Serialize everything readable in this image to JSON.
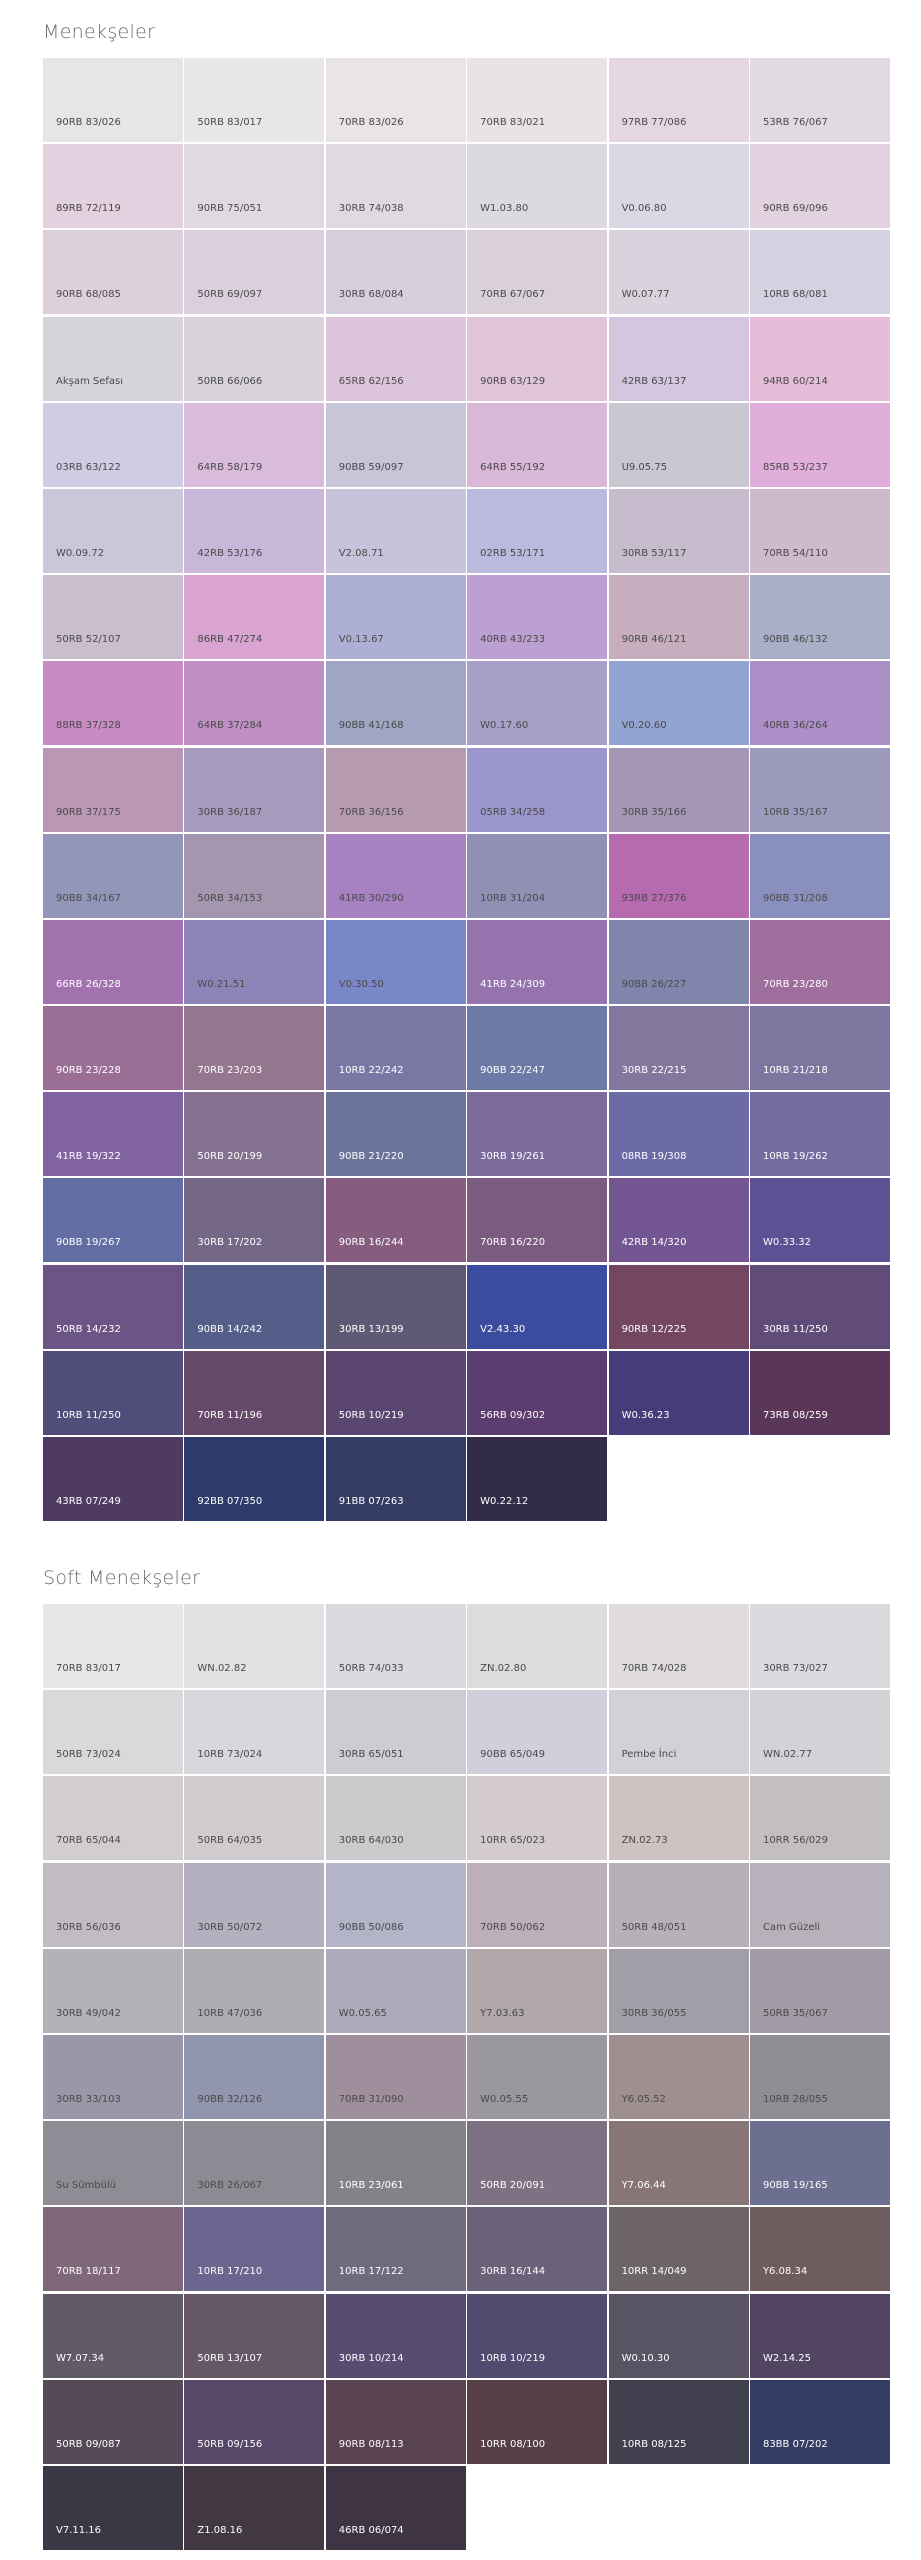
{
  "sections": [
    {
      "title": "Menekşeler",
      "swatches": [
        {
          "code": "90RB 83/026",
          "color": "#e8e5e8"
        },
        {
          "code": "50RB 83/017",
          "color": "#e9e6e8"
        },
        {
          "code": "70RB 83/026",
          "color": "#e8e4e7"
        },
        {
          "code": "70RB 83/021",
          "color": "#e7e3e6"
        },
        {
          "code": "97RB 77/086",
          "color": "#e5d7e2"
        },
        {
          "code": "53RB 76/067",
          "color": "#e2dae3"
        },
        {
          "code": "89RB 72/119",
          "color": "#e4d1df"
        },
        {
          "code": "90RB 75/051",
          "color": "#e0d9e0"
        },
        {
          "code": "30RB 74/038",
          "color": "#dfdadf"
        },
        {
          "code": "W1.03.80",
          "color": "#dcd9e0"
        },
        {
          "code": "V0.06.80",
          "color": "#d9d8e5"
        },
        {
          "code": "90RB 69/096",
          "color": "#e2d1de"
        },
        {
          "code": "90RB 68/085",
          "color": "#ddd0da"
        },
        {
          "code": "50RB 69/097",
          "color": "#dbcfdd"
        },
        {
          "code": "30RB 68/084",
          "color": "#d6cfdd"
        },
        {
          "code": "70RB 67/067",
          "color": "#d9d0d9"
        },
        {
          "code": "W0.07.77",
          "color": "#d8d3dc"
        },
        {
          "code": "10RB 68/081",
          "color": "#d4d1e0"
        },
        {
          "code": "Akşam Sefası",
          "color": "#d7d3da"
        },
        {
          "code": "50RB 66/066",
          "color": "#d8d3db"
        },
        {
          "code": "65RB 62/156",
          "color": "#dcc4dd"
        },
        {
          "code": "90RB 63/129",
          "color": "#dfc4da"
        },
        {
          "code": "42RB 63/137",
          "color": "#d5c6e0"
        },
        {
          "code": "94RB 60/214",
          "color": "#e6bdd9"
        },
        {
          "code": "03RB 63/122",
          "color": "#cfcce3"
        },
        {
          "code": "64RB 58/179",
          "color": "#d9bcdc"
        },
        {
          "code": "90BB 59/097",
          "color": "#c8c5d8"
        },
        {
          "code": "64RB 55/192",
          "color": "#d9b7d7"
        },
        {
          "code": "U9.05.75",
          "color": "#c8c7d2"
        },
        {
          "code": "85RB 53/237",
          "color": "#e1addb"
        },
        {
          "code": "W0.09.72",
          "color": "#cbc6da"
        },
        {
          "code": "42RB 53/176",
          "color": "#c8b7d8"
        },
        {
          "code": "V2.08.71",
          "color": "#c6c3da"
        },
        {
          "code": "02RB 53/171",
          "color": "#bbb9dd"
        },
        {
          "code": "30RB 53/117",
          "color": "#c6bcce"
        },
        {
          "code": "70RB 54/110",
          "color": "#cdbbcc"
        },
        {
          "code": "50RB 52/107",
          "color": "#c9bdce"
        },
        {
          "code": "86RB 47/274",
          "color": "#d9a4d1"
        },
        {
          "code": "V0.13.67",
          "color": "#adb0d4"
        },
        {
          "code": "40RB 43/233",
          "color": "#bda0d2"
        },
        {
          "code": "90RB 46/121",
          "color": "#c7aebf"
        },
        {
          "code": "90BB 46/132",
          "color": "#a9afc6"
        },
        {
          "code": "88RB 37/328",
          "color": "#c98bc4"
        },
        {
          "code": "64RB 37/284",
          "color": "#bf8fc4"
        },
        {
          "code": "90BB 41/168",
          "color": "#9ea6c4"
        },
        {
          "code": "W0.17.60",
          "color": "#a89fc8"
        },
        {
          "code": "V0.20.60",
          "color": "#93a3d2"
        },
        {
          "code": "40RB 36/264",
          "color": "#ab8fc6"
        },
        {
          "code": "90RB 37/175",
          "color": "#bb97b6"
        },
        {
          "code": "30RB 36/187",
          "color": "#a69bbd"
        },
        {
          "code": "70RB 36/156",
          "color": "#b69bb0"
        },
        {
          "code": "05RB 34/258",
          "color": "#9b96cb"
        },
        {
          "code": "30RB 35/166",
          "color": "#a597b5"
        },
        {
          "code": "10RB 35/167",
          "color": "#9d9bbd"
        },
        {
          "code": "90BB 34/167",
          "color": "#9296b8"
        },
        {
          "code": "50RB 34/153",
          "color": "#a496af"
        },
        {
          "code": "41RB 30/290",
          "color": "#a682c0"
        },
        {
          "code": "10RB 31/204",
          "color": "#9090b5"
        },
        {
          "code": "93RB 27/376",
          "color": "#b66aaf"
        },
        {
          "code": "90BB 31/208",
          "color": "#8a90bd"
        },
        {
          "code": "66RB 26/328",
          "color": "#a172ad"
        },
        {
          "code": "W0.21.51",
          "color": "#8e83b6"
        },
        {
          "code": "V0.30.50",
          "color": "#7887c8"
        },
        {
          "code": "41RB 24/309",
          "color": "#9574ad"
        },
        {
          "code": "90BB 26/227",
          "color": "#8085ac"
        },
        {
          "code": "70RB 23/280",
          "color": "#9e6f9c"
        },
        {
          "code": "90RB 23/228",
          "color": "#9b6e96"
        },
        {
          "code": "70RB 23/203",
          "color": "#95768f"
        },
        {
          "code": "10RB 22/242",
          "color": "#7b77a5"
        },
        {
          "code": "90BB 22/247",
          "color": "#6c7aa6"
        },
        {
          "code": "30RB 22/215",
          "color": "#82779d"
        },
        {
          "code": "10RB 21/218",
          "color": "#7b779e"
        },
        {
          "code": "41RB 19/322",
          "color": "#8163a1"
        },
        {
          "code": "50RB 20/199",
          "color": "#83718f"
        },
        {
          "code": "90BB 21/220",
          "color": "#6b7599"
        },
        {
          "code": "30RB 19/261",
          "color": "#7b6b9b"
        },
        {
          "code": "08RB 19/308",
          "color": "#6d6aa8"
        },
        {
          "code": "10RB 19/262",
          "color": "#726c9f"
        },
        {
          "code": "90BB 19/267",
          "color": "#626ea3"
        },
        {
          "code": "30RB 17/202",
          "color": "#756786"
        },
        {
          "code": "90RB 16/244",
          "color": "#865d7e"
        },
        {
          "code": "70RB 16/220",
          "color": "#7b5c80"
        },
        {
          "code": "42RB 14/320",
          "color": "#735592"
        },
        {
          "code": "W0.33.32",
          "color": "#5c5293"
        },
        {
          "code": "50RB 14/232",
          "color": "#6c5584"
        },
        {
          "code": "90BB 14/242",
          "color": "#545e88"
        },
        {
          "code": "30RB 13/199",
          "color": "#605975"
        },
        {
          "code": "V2.43.30",
          "color": "#3b4c9e"
        },
        {
          "code": "90RB 12/225",
          "color": "#734762"
        },
        {
          "code": "30RB 11/250",
          "color": "#604b79"
        },
        {
          "code": "10RB 11/250",
          "color": "#514d7b"
        },
        {
          "code": "70RB 11/196",
          "color": "#644a68"
        },
        {
          "code": "50RB 10/219",
          "color": "#5a4670"
        },
        {
          "code": "56RB 09/302",
          "color": "#5c3d6f"
        },
        {
          "code": "W0.36.23",
          "color": "#463c79"
        },
        {
          "code": "73RB 08/259",
          "color": "#5a3658"
        },
        {
          "code": "43RB 07/249",
          "color": "#4f3a62"
        },
        {
          "code": "92BB 07/350",
          "color": "#2c3b6b"
        },
        {
          "code": "91BB 07/263",
          "color": "#343c63"
        },
        {
          "code": "W0.22.12",
          "color": "#332c49"
        }
      ]
    },
    {
      "title": "Soft Menekşeler",
      "swatches": [
        {
          "code": "70RB 83/017",
          "color": "#e7e6e8"
        },
        {
          "code": "WN.02.82",
          "color": "#e2e1e4"
        },
        {
          "code": "50RB 74/033",
          "color": "#dcdade"
        },
        {
          "code": "ZN.02.80",
          "color": "#dedbdc"
        },
        {
          "code": "70RB 74/028",
          "color": "#dfdbdf"
        },
        {
          "code": "30RB 73/027",
          "color": "#dcdadf"
        },
        {
          "code": "50RB 73/024",
          "color": "#dbd8db"
        },
        {
          "code": "10RB 73/024",
          "color": "#d8d7dc"
        },
        {
          "code": "30RB 65/051",
          "color": "#cfcbd3"
        },
        {
          "code": "90BB 65/049",
          "color": "#d0cfdb"
        },
        {
          "code": "Pembe İnci",
          "color": "#d3d0d6"
        },
        {
          "code": "WN.02.77",
          "color": "#d4d2d7"
        },
        {
          "code": "70RB 65/044",
          "color": "#d2cdd0"
        },
        {
          "code": "50RB 64/035",
          "color": "#cfcbcf"
        },
        {
          "code": "30RB 64/030",
          "color": "#cdcacd"
        },
        {
          "code": "10RR 65/023",
          "color": "#d4cccc"
        },
        {
          "code": "ZN.02.73",
          "color": "#cfc2c3"
        },
        {
          "code": "10RR 56/029",
          "color": "#c3bfc1"
        },
        {
          "code": "30RB 56/036",
          "color": "#c1bcc2"
        },
        {
          "code": "30RB 50/072",
          "color": "#b5b0bf"
        },
        {
          "code": "90BB 50/086",
          "color": "#b4b4c8"
        },
        {
          "code": "70RB 50/062",
          "color": "#bcafba"
        },
        {
          "code": "50RB 48/051",
          "color": "#b8b0b9"
        },
        {
          "code": "Cam Güzeli",
          "color": "#b7b1bc"
        },
        {
          "code": "30RB 49/042",
          "color": "#b5b1b8"
        },
        {
          "code": "10RB 47/036",
          "color": "#b0acb3"
        },
        {
          "code": "W0.05.65",
          "color": "#aeabbb"
        },
        {
          "code": "Y7.03.63",
          "color": "#b2a7a9"
        },
        {
          "code": "30RB 36/055",
          "color": "#a29ea7"
        },
        {
          "code": "50RB 35/067",
          "color": "#a39ba5"
        },
        {
          "code": "30RB 33/103",
          "color": "#9b97a8"
        },
        {
          "code": "90BB 32/126",
          "color": "#9195ad"
        },
        {
          "code": "70RB 31/090",
          "color": "#9f8f9c"
        },
        {
          "code": "W0.05.55",
          "color": "#9b979f"
        },
        {
          "code": "Y6.05.52",
          "color": "#a08f91"
        },
        {
          "code": "10RB 28/055",
          "color": "#8f8c94"
        },
        {
          "code": "Su Sümbülü",
          "color": "#8f8c95"
        },
        {
          "code": "30RB 26/067",
          "color": "#8e8a93"
        },
        {
          "code": "10RB 23/061",
          "color": "#858189"
        },
        {
          "code": "50RB 20/091",
          "color": "#7e7184"
        },
        {
          "code": "Y7.06.44",
          "color": "#887677"
        },
        {
          "code": "90BB 19/165",
          "color": "#6c6f8f"
        },
        {
          "code": "70RB 18/117",
          "color": "#7f6879"
        },
        {
          "code": "10RB 17/210",
          "color": "#6a6690"
        },
        {
          "code": "10RB 17/122",
          "color": "#6f6b7f"
        },
        {
          "code": "30RB 16/144",
          "color": "#6a6279"
        },
        {
          "code": "10RR 14/049",
          "color": "#6c6467"
        },
        {
          "code": "Y6.08.34",
          "color": "#6e5c5f"
        },
        {
          "code": "W7.07.34",
          "color": "#615a67"
        },
        {
          "code": "50RB 13/107",
          "color": "#655767"
        },
        {
          "code": "30RB 10/214",
          "color": "#584d71"
        },
        {
          "code": "10RB 10/219",
          "color": "#514b70"
        },
        {
          "code": "W0.10.30",
          "color": "#585464"
        },
        {
          "code": "W2.14.25",
          "color": "#514562"
        },
        {
          "code": "50RB 09/087",
          "color": "#574a58"
        },
        {
          "code": "50RB 09/156",
          "color": "#574768"
        },
        {
          "code": "90RB 08/113",
          "color": "#5a4452"
        },
        {
          "code": "10RR 08/100",
          "color": "#573f48"
        },
        {
          "code": "10RB 08/125",
          "color": "#41404f"
        },
        {
          "code": "83BB 07/202",
          "color": "#333c62"
        },
        {
          "code": "V7.11.16",
          "color": "#3b3845"
        },
        {
          "code": "Z1.08.16",
          "color": "#413841"
        },
        {
          "code": "46RB 06/074",
          "color": "#3f3443"
        }
      ]
    }
  ]
}
